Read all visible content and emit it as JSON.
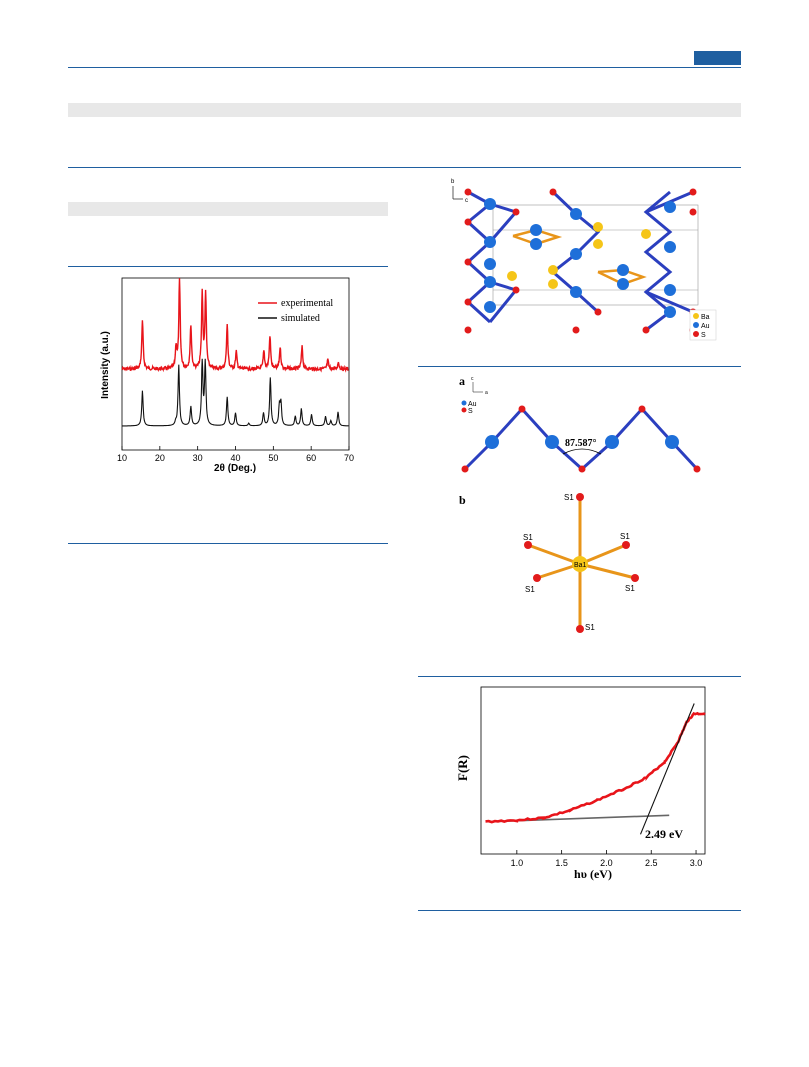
{
  "fig_xrd": {
    "chart_data": {
      "type": "line",
      "xlabel": "2θ (Deg.)",
      "ylabel": "Intensity (a.u.)",
      "xlim": [
        10,
        70
      ],
      "xticks": [
        "10",
        "20",
        "30",
        "40",
        "50",
        "60",
        "70"
      ],
      "legend_position": "top-right",
      "series": [
        {
          "name": "experimental",
          "color": "#e8141a",
          "peaks": [
            [
              15.4,
              0.55
            ],
            [
              24.3,
              0.25
            ],
            [
              25.2,
              1.0
            ],
            [
              28.2,
              0.5
            ],
            [
              31.2,
              0.85
            ],
            [
              32.1,
              0.85
            ],
            [
              37.8,
              0.5
            ],
            [
              40.2,
              0.2
            ],
            [
              47.5,
              0.2
            ],
            [
              49.1,
              0.38
            ],
            [
              51.8,
              0.25
            ],
            [
              57.6,
              0.25
            ],
            [
              64.4,
              0.1
            ],
            [
              67.2,
              0.08
            ]
          ]
        },
        {
          "name": "simulated",
          "color": "#111111",
          "peaks": [
            [
              15.4,
              0.55
            ],
            [
              24.2,
              0.05
            ],
            [
              25.0,
              0.95
            ],
            [
              28.2,
              0.3
            ],
            [
              31.2,
              1.0
            ],
            [
              32.0,
              1.0
            ],
            [
              37.8,
              0.45
            ],
            [
              40.0,
              0.2
            ],
            [
              43.5,
              0.04
            ],
            [
              47.4,
              0.2
            ],
            [
              49.2,
              0.75
            ],
            [
              51.6,
              0.3
            ],
            [
              52.0,
              0.35
            ],
            [
              55.8,
              0.15
            ],
            [
              57.4,
              0.27
            ],
            [
              60.1,
              0.18
            ],
            [
              63.8,
              0.15
            ],
            [
              65.2,
              0.08
            ],
            [
              67.1,
              0.22
            ]
          ]
        }
      ]
    }
  },
  "fig_struct": {
    "axes": {
      "b": "b",
      "c": "c"
    },
    "legend": [
      "Ba",
      "Au",
      "S"
    ]
  },
  "fig_chain": {
    "panel_a": "a",
    "panel_b": "b",
    "axes": {
      "c": "c",
      "a": "a"
    },
    "legend": [
      "Au",
      "S"
    ],
    "angle": "87.587°",
    "center_atom": "Ba1",
    "s_labels": [
      "S1",
      "S1",
      "S1",
      "S1",
      "S1",
      "S1"
    ]
  },
  "fig_band": {
    "chart_data": {
      "type": "line",
      "xlabel": "hυ (eV)",
      "ylabel": "F(R)",
      "xlim": [
        0.6,
        3.1
      ],
      "xticks": [
        "1.0",
        "1.5",
        "2.0",
        "2.5",
        "3.0"
      ],
      "annotation": "2.49 eV",
      "curve": [
        [
          0.65,
          0.05
        ],
        [
          1.0,
          0.06
        ],
        [
          1.3,
          0.08
        ],
        [
          1.6,
          0.14
        ],
        [
          1.9,
          0.22
        ],
        [
          2.2,
          0.31
        ],
        [
          2.45,
          0.4
        ],
        [
          2.65,
          0.52
        ],
        [
          2.8,
          0.68
        ],
        [
          2.9,
          0.84
        ],
        [
          2.98,
          0.9
        ],
        [
          3.1,
          0.9
        ]
      ],
      "tangent": [
        [
          2.38,
          -0.05
        ],
        [
          2.98,
          0.98
        ]
      ],
      "baseline": [
        [
          0.7,
          0.05
        ],
        [
          2.7,
          0.1
        ]
      ]
    }
  },
  "colors": {
    "accent": "#1f5fa0",
    "au": "#1e6fd9",
    "s": "#e21b1b",
    "ba": "#f5c518",
    "bond": "#2b3fbf",
    "ba_bond": "#e8951a"
  }
}
